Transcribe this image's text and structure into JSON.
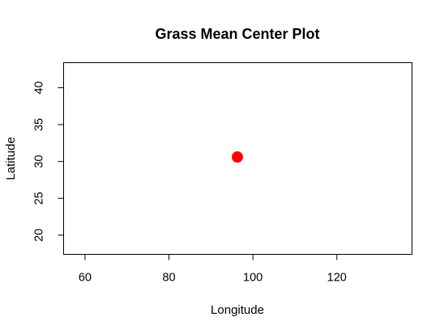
{
  "chart_data": {
    "type": "scatter",
    "title": "Grass Mean Center Plot",
    "xlabel": "Longitude",
    "ylabel": "Latitude",
    "xlim": [
      54.9,
      137.9
    ],
    "ylim": [
      17.4,
      43.4
    ],
    "xticks": [
      60,
      80,
      100,
      120
    ],
    "yticks": [
      20,
      25,
      30,
      35,
      40
    ],
    "grid": false,
    "legend": "none",
    "points": [
      {
        "x": 96.3,
        "y": 30.6
      }
    ],
    "point_color": "#ff0000"
  }
}
